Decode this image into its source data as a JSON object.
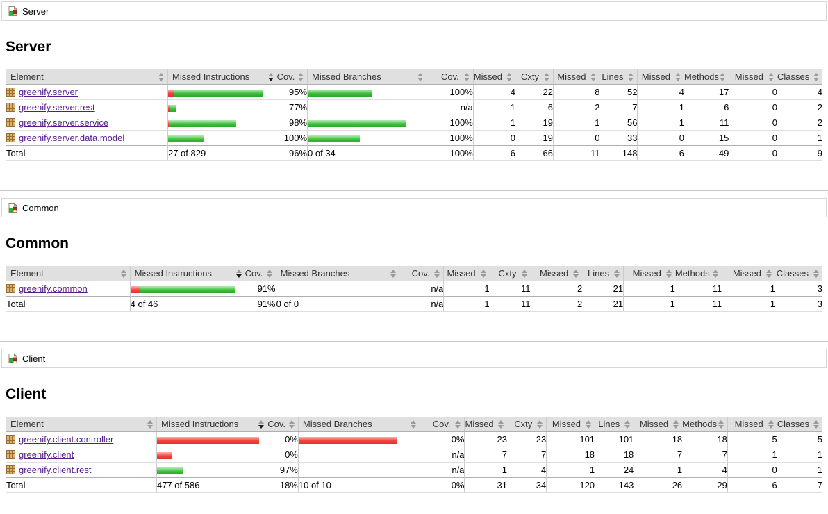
{
  "colors": {
    "bar_green": "#3dc13d",
    "bar_red": "#f5413b",
    "link": "#551a8b",
    "header_bg": "#e0e0e0"
  },
  "sort": {
    "column": "Missed Instructions",
    "direction": "desc"
  },
  "columns": [
    "Element",
    "Missed Instructions",
    "Cov.",
    "Missed Branches",
    "Cov.",
    "Missed",
    "Cxty",
    "Missed",
    "Lines",
    "Missed",
    "Methods",
    "Missed",
    "Classes"
  ],
  "sections": [
    {
      "breadcrumb": "Server",
      "title": "Server",
      "rows": [
        {
          "element": "greenify.server",
          "instr_bar": {
            "red": 8,
            "green": 129
          },
          "instr_cov": "95%",
          "branch_bar": {
            "green": 92
          },
          "branch_cov": "100%",
          "missed_cxty": "4",
          "cxty": "22",
          "missed_lines": "8",
          "lines": "52",
          "missed_methods": "4",
          "methods": "17",
          "missed_classes": "0",
          "classes": "4"
        },
        {
          "element": "greenify.server.rest",
          "instr_bar": {
            "red": 3,
            "green": 9
          },
          "instr_cov": "77%",
          "branch_bar": null,
          "branch_cov": "n/a",
          "missed_cxty": "1",
          "cxty": "6",
          "missed_lines": "2",
          "lines": "7",
          "missed_methods": "1",
          "methods": "6",
          "missed_classes": "0",
          "classes": "2"
        },
        {
          "element": "greenify.server.service",
          "instr_bar": {
            "red": 2,
            "green": 96
          },
          "instr_cov": "98%",
          "branch_bar": {
            "green": 142
          },
          "branch_cov": "100%",
          "missed_cxty": "1",
          "cxty": "19",
          "missed_lines": "1",
          "lines": "56",
          "missed_methods": "1",
          "methods": "11",
          "missed_classes": "0",
          "classes": "2"
        },
        {
          "element": "greenify.server.data.model",
          "instr_bar": {
            "green": 52
          },
          "instr_cov": "100%",
          "branch_bar": {
            "green": 75
          },
          "branch_cov": "100%",
          "missed_cxty": "0",
          "cxty": "19",
          "missed_lines": "0",
          "lines": "33",
          "missed_methods": "0",
          "methods": "15",
          "missed_classes": "0",
          "classes": "1"
        }
      ],
      "total": {
        "label": "Total",
        "instructions": "27 of 829",
        "instr_cov": "96%",
        "branches": "0 of 34",
        "branch_cov": "100%",
        "missed_cxty": "6",
        "cxty": "66",
        "missed_lines": "11",
        "lines": "148",
        "missed_methods": "6",
        "methods": "49",
        "missed_classes": "0",
        "classes": "9"
      }
    },
    {
      "breadcrumb": "Common",
      "title": "Common",
      "rows": [
        {
          "element": "greenify.common",
          "instr_bar": {
            "red": 13,
            "green": 137
          },
          "instr_cov": "91%",
          "branch_bar": null,
          "branch_cov": "n/a",
          "missed_cxty": "1",
          "cxty": "11",
          "missed_lines": "2",
          "lines": "21",
          "missed_methods": "1",
          "methods": "11",
          "missed_classes": "1",
          "classes": "3"
        }
      ],
      "total": {
        "label": "Total",
        "instructions": "4 of 46",
        "instr_cov": "91%",
        "branches": "0 of 0",
        "branch_cov": "n/a",
        "missed_cxty": "1",
        "cxty": "11",
        "missed_lines": "2",
        "lines": "21",
        "missed_methods": "1",
        "methods": "11",
        "missed_classes": "1",
        "classes": "3"
      }
    },
    {
      "breadcrumb": "Client",
      "title": "Client",
      "rows": [
        {
          "element": "greenify.client.controller",
          "instr_bar": {
            "red": 147
          },
          "instr_cov": "0%",
          "branch_bar": {
            "red": 141
          },
          "branch_cov": "0%",
          "missed_cxty": "23",
          "cxty": "23",
          "missed_lines": "101",
          "lines": "101",
          "missed_methods": "18",
          "methods": "18",
          "missed_classes": "5",
          "classes": "5"
        },
        {
          "element": "greenify.client",
          "instr_bar": {
            "red": 22
          },
          "instr_cov": "0%",
          "branch_bar": null,
          "branch_cov": "n/a",
          "missed_cxty": "7",
          "cxty": "7",
          "missed_lines": "18",
          "lines": "18",
          "missed_methods": "7",
          "methods": "7",
          "missed_classes": "1",
          "classes": "1"
        },
        {
          "element": "greenify.client.rest",
          "instr_bar": {
            "green": 38
          },
          "instr_cov": "97%",
          "branch_bar": null,
          "branch_cov": "n/a",
          "missed_cxty": "1",
          "cxty": "4",
          "missed_lines": "1",
          "lines": "24",
          "missed_methods": "1",
          "methods": "4",
          "missed_classes": "0",
          "classes": "1"
        }
      ],
      "total": {
        "label": "Total",
        "instructions": "477 of 586",
        "instr_cov": "18%",
        "branches": "10 of 10",
        "branch_cov": "0%",
        "missed_cxty": "31",
        "cxty": "34",
        "missed_lines": "120",
        "lines": "143",
        "missed_methods": "26",
        "methods": "29",
        "missed_classes": "6",
        "classes": "7"
      }
    }
  ]
}
